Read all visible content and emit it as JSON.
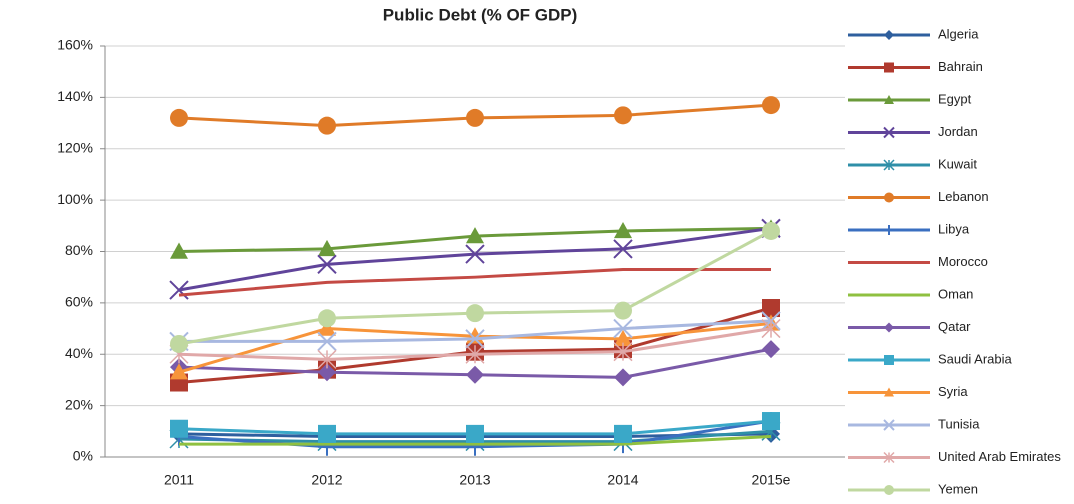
{
  "chart_data": {
    "type": "line",
    "title": "Public Debt (% OF GDP)",
    "categories": [
      "2011",
      "2012",
      "2013",
      "2014",
      "2015e"
    ],
    "ylim": [
      0,
      160
    ],
    "yticks": [
      {
        "value": 0,
        "label": "0%"
      },
      {
        "value": 20,
        "label": "20%"
      },
      {
        "value": 40,
        "label": "40%"
      },
      {
        "value": 60,
        "label": "60%"
      },
      {
        "value": 80,
        "label": "80%"
      },
      {
        "value": 100,
        "label": "100%"
      },
      {
        "value": 120,
        "label": "120%"
      },
      {
        "value": 140,
        "label": "140%"
      },
      {
        "value": 160,
        "label": "160%"
      }
    ],
    "grid": true,
    "legend": "right",
    "series": [
      {
        "name": "Algeria",
        "color": "#2e5f9e",
        "marker": "diamond",
        "values": [
          9,
          8,
          8,
          8,
          9
        ]
      },
      {
        "name": "Bahrain",
        "color": "#b03a2e",
        "marker": "square",
        "values": [
          29,
          34,
          41,
          42,
          58
        ]
      },
      {
        "name": "Egypt",
        "color": "#6a9a3a",
        "marker": "triangle",
        "values": [
          80,
          81,
          86,
          88,
          89
        ]
      },
      {
        "name": "Jordan",
        "color": "#60449a",
        "marker": "x",
        "values": [
          65,
          75,
          79,
          81,
          89
        ]
      },
      {
        "name": "Kuwait",
        "color": "#2f8fa8",
        "marker": "asterisk",
        "values": [
          7,
          6,
          6,
          6,
          10
        ]
      },
      {
        "name": "Lebanon",
        "color": "#e07b28",
        "marker": "circle",
        "values": [
          132,
          129,
          132,
          133,
          137
        ]
      },
      {
        "name": "Libya",
        "color": "#3a6fc0",
        "marker": "plus",
        "values": [
          8,
          4,
          4,
          5,
          14
        ]
      },
      {
        "name": "Morocco",
        "color": "#c44a44",
        "marker": "none",
        "values": [
          63,
          68,
          70,
          73,
          73
        ]
      },
      {
        "name": "Oman",
        "color": "#8fc040",
        "marker": "none",
        "values": [
          5,
          5,
          5,
          5,
          8
        ]
      },
      {
        "name": "Qatar",
        "color": "#7a5aa8",
        "marker": "diamond",
        "values": [
          35,
          33,
          32,
          31,
          42
        ]
      },
      {
        "name": "Saudi Arabia",
        "color": "#3aa8c8",
        "marker": "square",
        "values": [
          11,
          9,
          9,
          9,
          14
        ]
      },
      {
        "name": "Syria",
        "color": "#f7943a",
        "marker": "triangle",
        "values": [
          33,
          50,
          47,
          46,
          52
        ]
      },
      {
        "name": "Tunisia",
        "color": "#a8b8e0",
        "marker": "x",
        "values": [
          45,
          45,
          46,
          50,
          53
        ]
      },
      {
        "name": "United Arab Emirates",
        "color": "#e0a8a8",
        "marker": "asterisk",
        "values": [
          40,
          38,
          40,
          41,
          50
        ]
      },
      {
        "name": "Yemen",
        "color": "#c0d8a0",
        "marker": "circle",
        "values": [
          44,
          54,
          56,
          57,
          88
        ]
      }
    ]
  }
}
